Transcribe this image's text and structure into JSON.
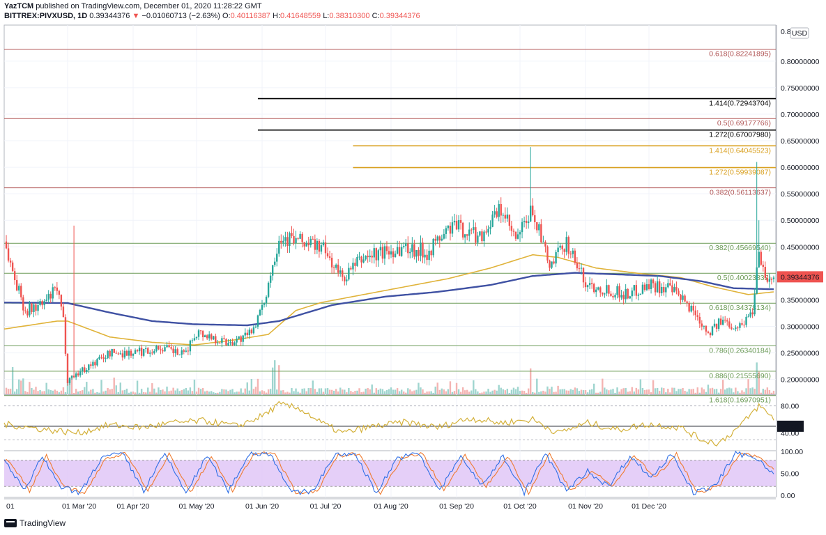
{
  "header": {
    "author": "YazTCM",
    "published": "published on TradingView.com, December 01, 2020 11:28:22 GMT",
    "symbol": "BITTREX:PIVXUSD, 1D",
    "last": "0.39344376",
    "change": "−0.01060713 (−2.63%)",
    "open_label": "O:",
    "open": "0.40116387",
    "high_label": "H:",
    "high": "0.41648559",
    "low_label": "L:",
    "low": "0.38310300",
    "close_label": "C:",
    "close": "0.39344376"
  },
  "footer": {
    "brand": "TradingView"
  },
  "currency_button": "USD",
  "colors": {
    "up": "#26a69a",
    "down": "#ef5350",
    "ma200": "#3f51a3",
    "ma100": "#e0b33a",
    "fib_red": "#b05454",
    "fib_green": "#6a9a55",
    "fib_orange": "#d9a020",
    "fib_black": "#000000",
    "rsi": "#d4b13a",
    "stoch_k": "#2f6fe6",
    "stoch_d": "#ef7b30",
    "stoch_band": "#e1c7f7"
  },
  "chart_data": [
    {
      "type": "candlestick",
      "pair": "PIVX/USD",
      "timeframe": "1D",
      "x_tick_labels": [
        "01",
        "01 Mar '20",
        "01 Apr '20",
        "01 May '20",
        "01 Jun '20",
        "01 Jul '20",
        "01 Aug '20",
        "01 Sep '20",
        "01 Oct '20",
        "01 Nov '20",
        "01 Dec '20"
      ],
      "y_tick_labels": [
        "0.80000000",
        "0.75000000",
        "0.70000000",
        "0.65000000",
        "0.60000000",
        "0.55000000",
        "0.50000000",
        "0.45000000",
        "0.35000000",
        "0.30000000",
        "0.25000000",
        "0.20000000"
      ],
      "y_top_label_partial": "0.8",
      "ylim": [
        0.172,
        0.868
      ],
      "x_range_days": [
        -30,
        335
      ],
      "current_price_label": "0.39344376",
      "fib_levels": [
        {
          "label": "0.618(0.82241895)",
          "value": 0.82241895,
          "color": "#b05454",
          "x_start_day": -30
        },
        {
          "label": "1.414(0.72943704)",
          "value": 0.72943704,
          "color": "#000000",
          "x_start_day": 90
        },
        {
          "label": "0.5(0.69177766)",
          "value": 0.69177766,
          "color": "#b05454",
          "x_start_day": -30
        },
        {
          "label": "1.272(0.67007980)",
          "value": 0.6700798,
          "color": "#000000",
          "x_start_day": 90
        },
        {
          "label": "1.414(0.64045523)",
          "value": 0.64045523,
          "color": "#d9a020",
          "x_start_day": 135
        },
        {
          "label": "1.272(0.59939087)",
          "value": 0.59939087,
          "color": "#d9a020",
          "x_start_day": 135
        },
        {
          "label": "0.382(0.56113637)",
          "value": 0.56113637,
          "color": "#b05454",
          "x_start_day": -30
        },
        {
          "label": "0.382(0.45669540)",
          "value": 0.4566954,
          "color": "#6a9a55",
          "x_start_day": -30
        },
        {
          "label": "0.5(0.40023837)",
          "value": 0.40023837,
          "color": "#6a9a55",
          "x_start_day": -30
        },
        {
          "label": "0.618(0.34378134)",
          "value": 0.34378134,
          "color": "#6a9a55",
          "x_start_day": -30
        },
        {
          "label": "0.786(0.26340184)",
          "value": 0.26340184,
          "color": "#6a9a55",
          "x_start_day": -30
        },
        {
          "label": "0.886(0.21555690)",
          "value": 0.2155569,
          "color": "#6a9a55",
          "x_start_day": -30
        },
        {
          "label": "1.618(0.16970951)",
          "value": 0.16970951,
          "color": "#6a9a55",
          "x_start_day": -30
        }
      ],
      "price_keypoints": [
        [
          -30,
          0.46
        ],
        [
          -25,
          0.39
        ],
        [
          -20,
          0.33
        ],
        [
          -12,
          0.34
        ],
        [
          -5,
          0.37
        ],
        [
          -2,
          0.31
        ],
        [
          0,
          0.2
        ],
        [
          10,
          0.225
        ],
        [
          20,
          0.25
        ],
        [
          31,
          0.25
        ],
        [
          45,
          0.26
        ],
        [
          55,
          0.245
        ],
        [
          61,
          0.29
        ],
        [
          75,
          0.27
        ],
        [
          85,
          0.28
        ],
        [
          92,
          0.33
        ],
        [
          96,
          0.4
        ],
        [
          100,
          0.47
        ],
        [
          110,
          0.46
        ],
        [
          120,
          0.45
        ],
        [
          130,
          0.39
        ],
        [
          140,
          0.43
        ],
        [
          150,
          0.44
        ],
        [
          160,
          0.45
        ],
        [
          170,
          0.44
        ],
        [
          182,
          0.49
        ],
        [
          195,
          0.47
        ],
        [
          205,
          0.52
        ],
        [
          212,
          0.46
        ],
        [
          220,
          0.52
        ],
        [
          228,
          0.41
        ],
        [
          236,
          0.46
        ],
        [
          245,
          0.38
        ],
        [
          255,
          0.37
        ],
        [
          265,
          0.36
        ],
        [
          275,
          0.38
        ],
        [
          285,
          0.37
        ],
        [
          296,
          0.33
        ],
        [
          303,
          0.29
        ],
        [
          310,
          0.31
        ],
        [
          318,
          0.3
        ],
        [
          324,
          0.33
        ],
        [
          327,
          0.45
        ],
        [
          330,
          0.39
        ],
        [
          334,
          0.39
        ]
      ],
      "spike_wicks": [
        {
          "day": 3,
          "high": 0.49
        },
        {
          "day": 219,
          "high": 0.638
        },
        {
          "day": 326,
          "high": 0.61
        },
        {
          "day": 327,
          "high": 0.5
        }
      ],
      "ma_200_keypoints": [
        [
          -30,
          0.345
        ],
        [
          0,
          0.344
        ],
        [
          20,
          0.326
        ],
        [
          40,
          0.31
        ],
        [
          60,
          0.304
        ],
        [
          85,
          0.302
        ],
        [
          100,
          0.31
        ],
        [
          125,
          0.34
        ],
        [
          150,
          0.356
        ],
        [
          175,
          0.365
        ],
        [
          200,
          0.378
        ],
        [
          220,
          0.395
        ],
        [
          240,
          0.401
        ],
        [
          260,
          0.398
        ],
        [
          280,
          0.395
        ],
        [
          300,
          0.385
        ],
        [
          315,
          0.372
        ],
        [
          334,
          0.37
        ]
      ],
      "ma_100_keypoints": [
        [
          -30,
          0.295
        ],
        [
          -5,
          0.31
        ],
        [
          0,
          0.31
        ],
        [
          20,
          0.28
        ],
        [
          40,
          0.27
        ],
        [
          60,
          0.265
        ],
        [
          80,
          0.275
        ],
        [
          95,
          0.285
        ],
        [
          108,
          0.33
        ],
        [
          120,
          0.345
        ],
        [
          140,
          0.36
        ],
        [
          160,
          0.375
        ],
        [
          180,
          0.39
        ],
        [
          200,
          0.41
        ],
        [
          220,
          0.435
        ],
        [
          232,
          0.43
        ],
        [
          250,
          0.41
        ],
        [
          270,
          0.4
        ],
        [
          290,
          0.392
        ],
        [
          305,
          0.375
        ],
        [
          322,
          0.36
        ],
        [
          334,
          0.365
        ]
      ]
    },
    {
      "type": "line",
      "name": "RSI",
      "y_tick_labels": [
        "80.00",
        "40.00"
      ],
      "current_value_label": "50.00",
      "ylim": [
        15,
        95
      ],
      "reference_lines": [
        80,
        50,
        30
      ],
      "keypoints": [
        [
          -30,
          53
        ],
        [
          -10,
          45
        ],
        [
          5,
          40
        ],
        [
          20,
          52
        ],
        [
          35,
          48
        ],
        [
          50,
          55
        ],
        [
          65,
          58
        ],
        [
          80,
          50
        ],
        [
          92,
          65
        ],
        [
          100,
          82
        ],
        [
          110,
          76
        ],
        [
          120,
          55
        ],
        [
          130,
          40
        ],
        [
          145,
          50
        ],
        [
          160,
          56
        ],
        [
          175,
          48
        ],
        [
          190,
          62
        ],
        [
          205,
          55
        ],
        [
          220,
          60
        ],
        [
          232,
          40
        ],
        [
          246,
          55
        ],
        [
          260,
          45
        ],
        [
          275,
          53
        ],
        [
          290,
          48
        ],
        [
          300,
          30
        ],
        [
          308,
          25
        ],
        [
          318,
          50
        ],
        [
          327,
          80
        ],
        [
          334,
          62
        ]
      ]
    },
    {
      "type": "line",
      "name": "Stochastic RSI",
      "y_tick_labels": [
        "100.00",
        "50.00",
        "0.00"
      ],
      "ylim": [
        -5,
        100
      ],
      "band": [
        20,
        80
      ],
      "series_count": 2,
      "keypoints_k": [
        [
          -30,
          80
        ],
        [
          -20,
          10
        ],
        [
          -12,
          90
        ],
        [
          -4,
          20
        ],
        [
          6,
          5
        ],
        [
          16,
          85
        ],
        [
          26,
          95
        ],
        [
          36,
          10
        ],
        [
          46,
          95
        ],
        [
          56,
          5
        ],
        [
          66,
          90
        ],
        [
          76,
          10
        ],
        [
          86,
          95
        ],
        [
          96,
          95
        ],
        [
          106,
          5
        ],
        [
          116,
          10
        ],
        [
          126,
          90
        ],
        [
          136,
          95
        ],
        [
          146,
          5
        ],
        [
          156,
          85
        ],
        [
          166,
          95
        ],
        [
          176,
          10
        ],
        [
          186,
          90
        ],
        [
          196,
          20
        ],
        [
          206,
          90
        ],
        [
          216,
          5
        ],
        [
          226,
          95
        ],
        [
          236,
          10
        ],
        [
          246,
          55
        ],
        [
          256,
          20
        ],
        [
          266,
          90
        ],
        [
          276,
          40
        ],
        [
          286,
          95
        ],
        [
          296,
          5
        ],
        [
          306,
          20
        ],
        [
          316,
          95
        ],
        [
          326,
          85
        ],
        [
          334,
          50
        ]
      ]
    }
  ]
}
